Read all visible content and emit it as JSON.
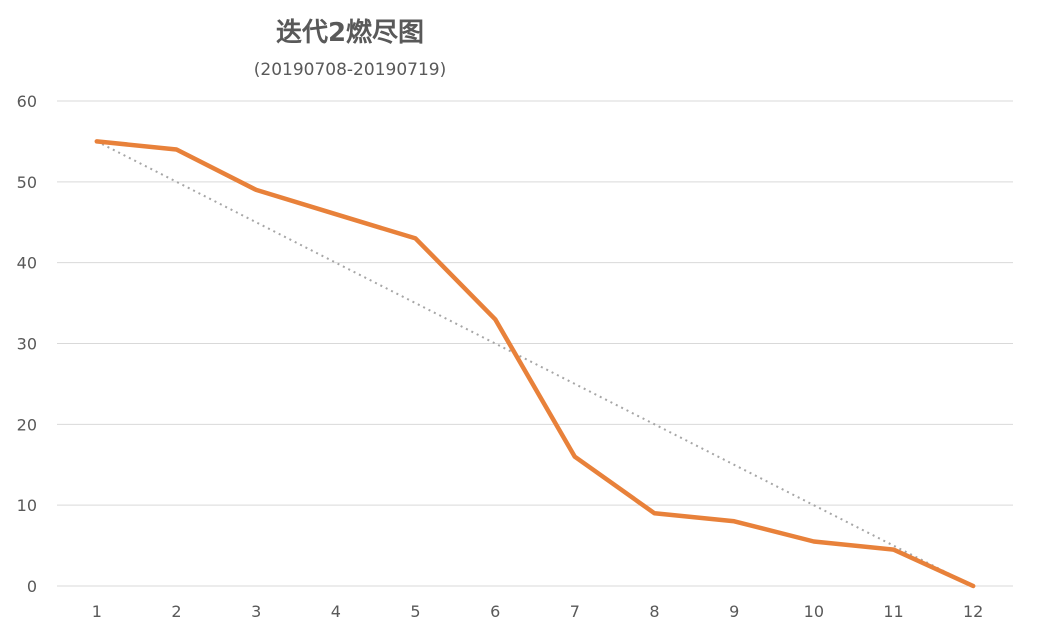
{
  "chart_data": {
    "type": "line",
    "title": "迭代2燃尽图",
    "subtitle": "(20190708-20190719)",
    "xlabel": "",
    "ylabel": "",
    "x": [
      1,
      2,
      3,
      4,
      5,
      6,
      7,
      8,
      9,
      10,
      11,
      12
    ],
    "ylim": [
      0,
      60
    ],
    "yticks": [
      0,
      10,
      20,
      30,
      40,
      50,
      60
    ],
    "grid": true,
    "legend": "none",
    "series": [
      {
        "values": [
          55,
          54,
          49,
          46,
          43,
          33,
          16,
          9,
          8,
          5.5,
          4.5,
          0
        ],
        "color": "#E8813A",
        "style": "solid"
      },
      {
        "values": [
          55,
          50,
          45,
          40,
          35,
          30,
          25,
          20,
          15,
          10,
          5,
          0
        ],
        "color": "#A6A6A6",
        "style": "dotted"
      }
    ]
  }
}
